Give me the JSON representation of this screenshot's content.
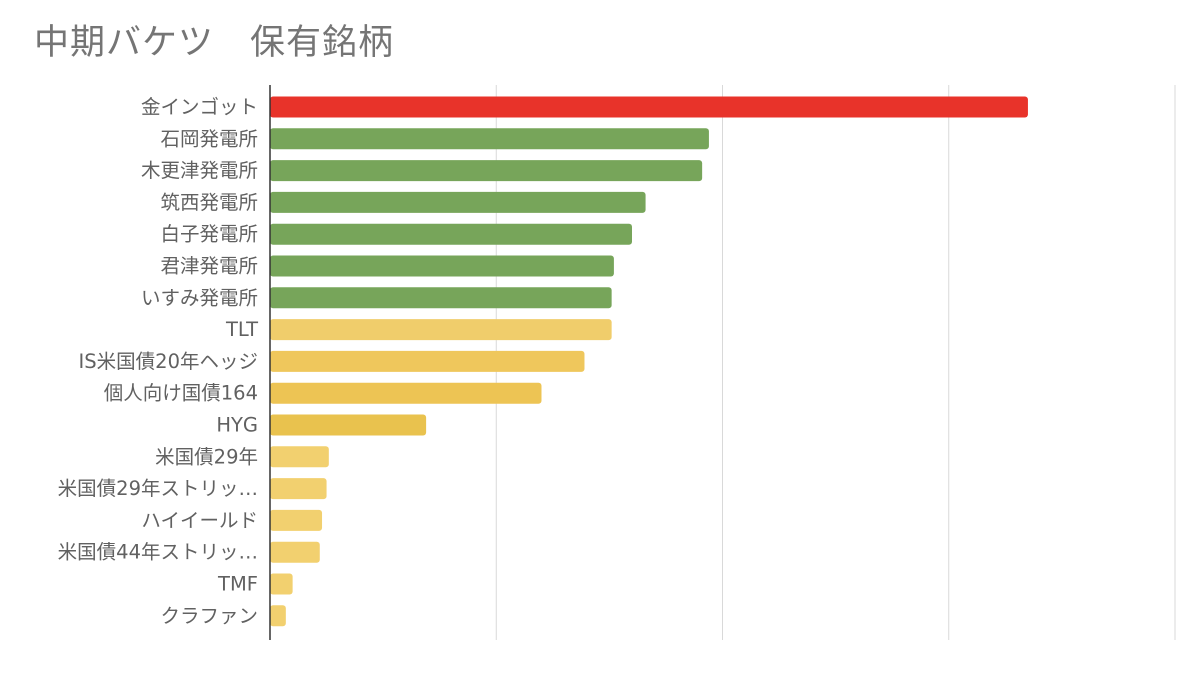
{
  "chart_data": {
    "type": "bar",
    "orientation": "horizontal",
    "title": "中期バケツ　保有銘柄",
    "xlabel": "",
    "ylabel": "",
    "xlim": [
      0,
      20
    ],
    "grid": true,
    "legend": "none",
    "categories": [
      "金インゴット",
      "石岡発電所",
      "木更津発電所",
      "筑西発電所",
      "白子発電所",
      "君津発電所",
      "いすみ発電所",
      "TLT",
      "IS米国債20年ヘッジ",
      "個人向け国債164",
      "HYG",
      "米国債29年",
      "米国債29年ストリッ…",
      "ハイイールド",
      "米国債44年ストリッ…",
      "TMF",
      "クラファン"
    ],
    "values": [
      16.75,
      9.7,
      9.55,
      8.3,
      8.0,
      7.6,
      7.55,
      7.55,
      6.95,
      6.0,
      3.45,
      1.3,
      1.25,
      1.15,
      1.1,
      0.5,
      0.35
    ],
    "colors": [
      "#e8332a",
      "#77a55a",
      "#77a55a",
      "#77a55a",
      "#77a55a",
      "#77a55a",
      "#77a55a",
      "#f0cd6b",
      "#efc75c",
      "#edc454",
      "#e9c24e",
      "#f2d06f",
      "#f2d06f",
      "#f2d06f",
      "#f2d06f",
      "#f2d06f",
      "#f2d06f"
    ]
  }
}
